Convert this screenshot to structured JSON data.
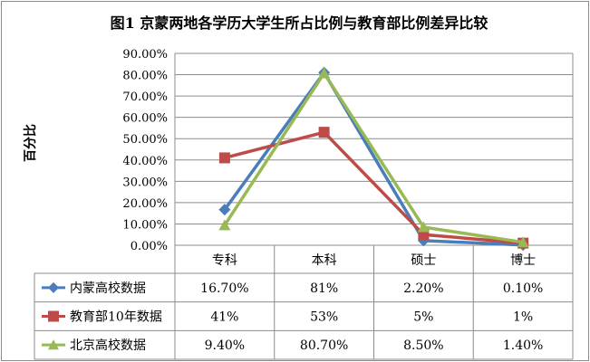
{
  "chart_data": {
    "type": "line",
    "title": "图1 京蒙两地各学历大学生所占比例与教育部比例差异比较",
    "ylabel": "百分比",
    "xlabel": "",
    "categories": [
      "专科",
      "本科",
      "硕士",
      "博士"
    ],
    "ylim": [
      0,
      90
    ],
    "ytick_step": 10,
    "ytick_labels": [
      "0.00%",
      "10.00%",
      "20.00%",
      "30.00%",
      "40.00%",
      "50.00%",
      "60.00%",
      "70.00%",
      "80.00%",
      "90.00%"
    ],
    "grid": true,
    "legend": "data-table",
    "series": [
      {
        "name": "内蒙高校数据",
        "values": [
          16.7,
          81,
          2.2,
          0.1
        ],
        "labels": [
          "16.70%",
          "81%",
          "2.20%",
          "0.10%"
        ],
        "color": "#4a7ebb",
        "marker": "diamond"
      },
      {
        "name": "教育部10年数据",
        "values": [
          41,
          53,
          5,
          1
        ],
        "labels": [
          "41%",
          "53%",
          "5%",
          "1%"
        ],
        "color": "#be4b48",
        "marker": "square"
      },
      {
        "name": "北京高校数据",
        "values": [
          9.4,
          80.7,
          8.5,
          1.4
        ],
        "labels": [
          "9.40%",
          "80.70%",
          "8.50%",
          "1.40%"
        ],
        "color": "#98b954",
        "marker": "triangle"
      }
    ]
  }
}
